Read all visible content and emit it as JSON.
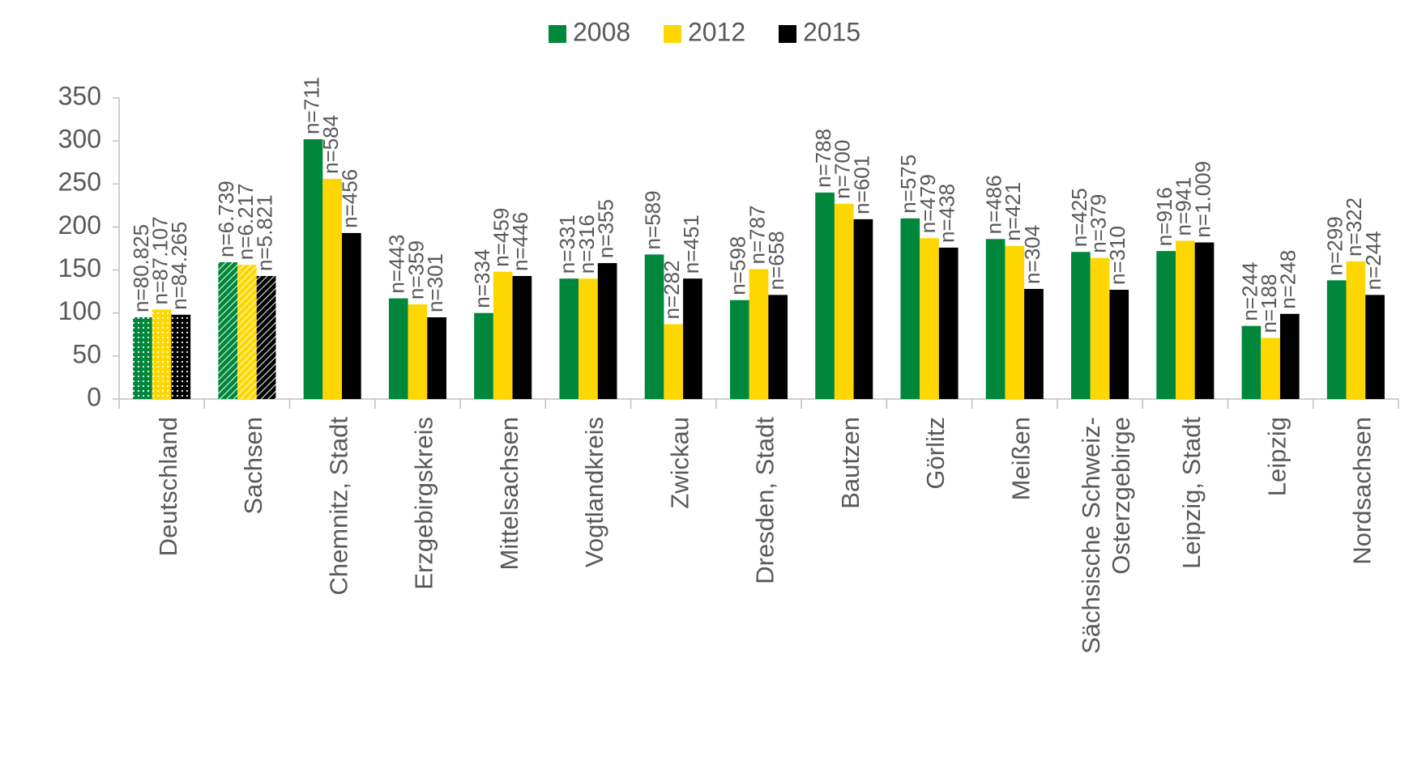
{
  "chart_data": {
    "type": "bar",
    "categories": [
      "Deutschland",
      "Sachsen",
      "Chemnitz, Stadt",
      "Erzgebirgskreis",
      "Mittelsachsen",
      "Vogtlandkreis",
      "Zwickau",
      "Dresden, Stadt",
      "Bautzen",
      "Görlitz",
      "Meißen",
      "Sächsische Schweiz-\nOsterzgebirge",
      "Leipzig, Stadt",
      "Leipzig",
      "Nordsachsen"
    ],
    "bar_patterns": [
      "dotted",
      "hatched",
      "solid",
      "solid",
      "solid",
      "solid",
      "solid",
      "solid",
      "solid",
      "solid",
      "solid",
      "solid",
      "solid",
      "solid",
      "solid"
    ],
    "series": [
      {
        "name": "2008",
        "color": "#00873c",
        "values": [
          95,
          159,
          302,
          117,
          100,
          140,
          168,
          115,
          240,
          210,
          186,
          171,
          172,
          85,
          138
        ],
        "n_labels": [
          "n=80.825",
          "n=6.739",
          "n=711",
          "n=443",
          "n=334",
          "n=331",
          "n=589",
          "n=598",
          "n=788",
          "n=575",
          "n=486",
          "n=425",
          "n=916",
          "n=244",
          "n=299"
        ]
      },
      {
        "name": "2012",
        "color": "#ffd700",
        "values": [
          104,
          156,
          256,
          110,
          148,
          140,
          87,
          151,
          227,
          187,
          178,
          164,
          184,
          71,
          160
        ],
        "n_labels": [
          "n=87.107",
          "n=6.217",
          "n=584",
          "n=359",
          "n=459",
          "n=316",
          "n=282",
          "n=787",
          "n=700",
          "n=479",
          "n=421",
          "n=379",
          "n=941",
          "n=188",
          "n=322"
        ]
      },
      {
        "name": "2015",
        "color": "#000000",
        "values": [
          98,
          143,
          193,
          95,
          143,
          158,
          140,
          121,
          209,
          176,
          128,
          127,
          182,
          99,
          121
        ],
        "n_labels": [
          "n=84.265",
          "n=5.821",
          "n=456",
          "n=301",
          "n=446",
          "n=355",
          "n=451",
          "n=658",
          "n=601",
          "n=438",
          "n=304",
          "n=310",
          "n=1.009",
          "n=248",
          "n=244"
        ]
      }
    ],
    "ylim": [
      0,
      350
    ],
    "yticks": [
      0,
      50,
      100,
      150,
      200,
      250,
      300,
      350
    ],
    "grid": false,
    "legend": "top"
  }
}
